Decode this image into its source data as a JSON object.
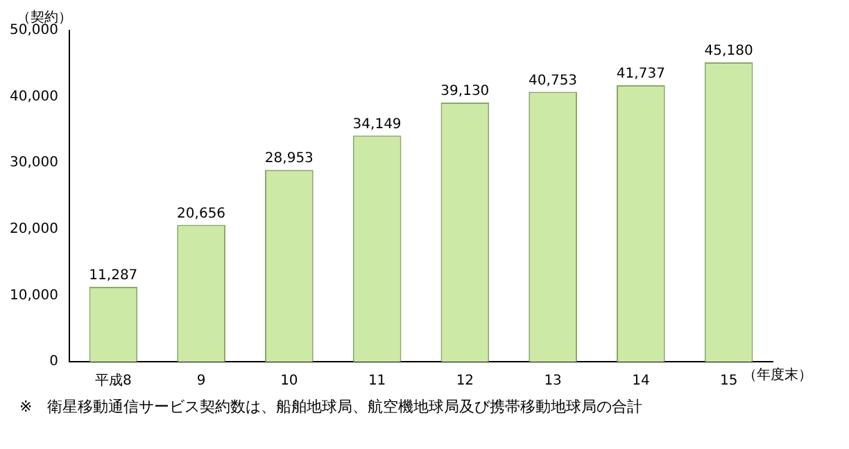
{
  "chart_data": {
    "type": "bar",
    "ylabel": "（契約）",
    "xlabel": "（年度末）",
    "categories": [
      "平成8",
      "9",
      "10",
      "11",
      "12",
      "13",
      "14",
      "15"
    ],
    "values": [
      11287,
      20656,
      28953,
      34149,
      39130,
      40753,
      41737,
      45180
    ],
    "value_labels": [
      "11,287",
      "20,656",
      "28,953",
      "34,149",
      "39,130",
      "40,753",
      "41,737",
      "45,180"
    ],
    "color": "#cde9a6",
    "ylim": [
      0,
      50000
    ],
    "yticks": [
      {
        "value": 0,
        "label": "0"
      },
      {
        "value": 10000,
        "label": "10,000"
      },
      {
        "value": 20000,
        "label": "20,000"
      },
      {
        "value": 30000,
        "label": "30,000"
      },
      {
        "value": 40000,
        "label": "40,000"
      },
      {
        "value": 50000,
        "label": "50,000"
      }
    ],
    "grid": false,
    "legend": false,
    "annotations": [
      "※　衛星移動通信サービス契約数は、船舶地球局、航空機地球局及び携帯移動地球局の合計"
    ]
  }
}
